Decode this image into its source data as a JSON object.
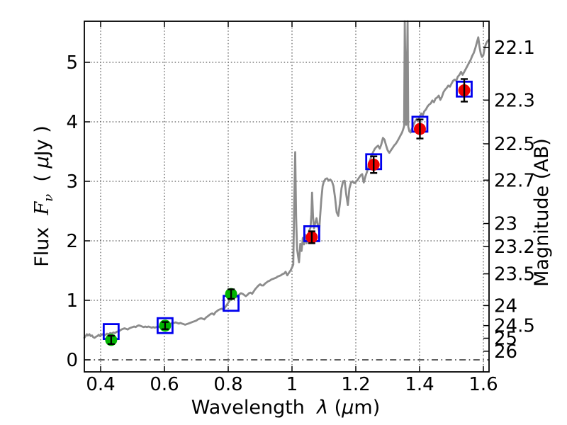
{
  "chart_data": {
    "type": "line+scatter",
    "description": "Galaxy spectral energy distribution: gray model spectrum, green/red observed photometry with error bars, blue open squares for model photometry",
    "xlabel": {
      "text": "Wavelength  ",
      "symbol": "λ",
      "unit_open": " (",
      "mu": "μ",
      "unit_rest": "m)"
    },
    "ylabel_left": {
      "word": "Flux  ",
      "symbol": "F",
      "symbol_sub": "ν",
      "unit_open": "  ( ",
      "mu": "μ",
      "unit_rest": "Jy )"
    },
    "ylabel_right": "Magnitude (AB)",
    "xlim": [
      0.349,
      1.618
    ],
    "ylim": [
      -0.2,
      5.69
    ],
    "x_ticks": {
      "values": [
        0.4,
        0.6,
        0.8,
        1.0,
        1.2,
        1.4,
        1.6
      ],
      "labels": [
        "0.4",
        "0.6",
        "0.8",
        "1",
        "1.2",
        "1.4",
        "1.6"
      ]
    },
    "y_ticks_left": {
      "values": [
        0,
        1,
        2,
        3,
        4,
        5
      ],
      "labels": [
        "0",
        "1",
        "2",
        "3",
        "4",
        "5"
      ]
    },
    "y_ticks_right": {
      "mags": [
        22.1,
        22.3,
        22.5,
        22.7,
        23,
        23.2,
        23.5,
        24,
        24.5,
        25,
        26
      ],
      "labels": [
        "22.1",
        "22.3",
        "22.5",
        "22.7",
        "23",
        "23.2",
        "23.5",
        "24",
        "24.5",
        "25",
        "26"
      ],
      "ab_zeropoint_ujy": 23.9
    },
    "grid": {
      "vertical_at_x_ticks": true,
      "horizontal_at_flux": [
        1,
        2,
        3,
        4,
        5
      ],
      "style": "dotted",
      "zero_flux_line_style": "dash-dot"
    },
    "colors": {
      "observed_optical": "#00b400",
      "observed_infrared": "#ee0000",
      "model_square": "#0000ee",
      "spectrum": "#8c8c8c",
      "grid": "#3a3a3a",
      "frame": "#000000",
      "background": "#ffffff"
    },
    "observed_photometry": [
      {
        "wavelength_um": 0.433,
        "flux_ujy": 0.335,
        "err_ujy": 0.07,
        "color": "observed_optical"
      },
      {
        "wavelength_um": 0.602,
        "flux_ujy": 0.575,
        "err_ujy": 0.06,
        "color": "observed_optical"
      },
      {
        "wavelength_um": 0.809,
        "flux_ujy": 1.105,
        "err_ujy": 0.08,
        "color": "observed_optical"
      },
      {
        "wavelength_um": 1.062,
        "flux_ujy": 2.06,
        "err_ujy": 0.1,
        "color": "observed_infrared"
      },
      {
        "wavelength_um": 1.256,
        "flux_ujy": 3.28,
        "err_ujy": 0.14,
        "color": "observed_infrared"
      },
      {
        "wavelength_um": 1.401,
        "flux_ujy": 3.88,
        "err_ujy": 0.16,
        "color": "observed_infrared"
      },
      {
        "wavelength_um": 1.54,
        "flux_ujy": 4.53,
        "err_ujy": 0.19,
        "color": "observed_infrared"
      }
    ],
    "model_photometry": [
      {
        "wavelength_um": 0.433,
        "flux_ujy": 0.475
      },
      {
        "wavelength_um": 0.602,
        "flux_ujy": 0.575
      },
      {
        "wavelength_um": 0.809,
        "flux_ujy": 0.95
      },
      {
        "wavelength_um": 1.062,
        "flux_ujy": 2.12
      },
      {
        "wavelength_um": 1.256,
        "flux_ujy": 3.33
      },
      {
        "wavelength_um": 1.401,
        "flux_ujy": 3.96
      },
      {
        "wavelength_um": 1.54,
        "flux_ujy": 4.55
      }
    ],
    "spectrum": {
      "color": "#8c8c8c",
      "points": [
        [
          0.349,
          0.37
        ],
        [
          0.353,
          0.4
        ],
        [
          0.357,
          0.43
        ],
        [
          0.36,
          0.41
        ],
        [
          0.365,
          0.43
        ],
        [
          0.369,
          0.4
        ],
        [
          0.373,
          0.41
        ],
        [
          0.377,
          0.38
        ],
        [
          0.381,
          0.37
        ],
        [
          0.386,
          0.39
        ],
        [
          0.39,
          0.4
        ],
        [
          0.394,
          0.42
        ],
        [
          0.398,
          0.4
        ],
        [
          0.402,
          0.42
        ],
        [
          0.406,
          0.43
        ],
        [
          0.41,
          0.41
        ],
        [
          0.415,
          0.42
        ],
        [
          0.42,
          0.44
        ],
        [
          0.425,
          0.43
        ],
        [
          0.43,
          0.45
        ],
        [
          0.435,
          0.44
        ],
        [
          0.44,
          0.46
        ],
        [
          0.445,
          0.45
        ],
        [
          0.45,
          0.47
        ],
        [
          0.455,
          0.48
        ],
        [
          0.46,
          0.49
        ],
        [
          0.465,
          0.51
        ],
        [
          0.47,
          0.52
        ],
        [
          0.475,
          0.53
        ],
        [
          0.48,
          0.52
        ],
        [
          0.485,
          0.51
        ],
        [
          0.49,
          0.53
        ],
        [
          0.495,
          0.54
        ],
        [
          0.5,
          0.55
        ],
        [
          0.505,
          0.56
        ],
        [
          0.51,
          0.55
        ],
        [
          0.515,
          0.57
        ],
        [
          0.52,
          0.58
        ],
        [
          0.525,
          0.57
        ],
        [
          0.53,
          0.56
        ],
        [
          0.535,
          0.55
        ],
        [
          0.54,
          0.56
        ],
        [
          0.545,
          0.55
        ],
        [
          0.55,
          0.56
        ],
        [
          0.555,
          0.55
        ],
        [
          0.56,
          0.54
        ],
        [
          0.565,
          0.55
        ],
        [
          0.57,
          0.54
        ],
        [
          0.575,
          0.55
        ],
        [
          0.58,
          0.56
        ],
        [
          0.585,
          0.55
        ],
        [
          0.59,
          0.56
        ],
        [
          0.595,
          0.57
        ],
        [
          0.6,
          0.57
        ],
        [
          0.605,
          0.58
        ],
        [
          0.61,
          0.59
        ],
        [
          0.615,
          0.6
        ],
        [
          0.62,
          0.61
        ],
        [
          0.625,
          0.62
        ],
        [
          0.63,
          0.62
        ],
        [
          0.635,
          0.63
        ],
        [
          0.64,
          0.62
        ],
        [
          0.645,
          0.61
        ],
        [
          0.65,
          0.62
        ],
        [
          0.655,
          0.61
        ],
        [
          0.66,
          0.6
        ],
        [
          0.665,
          0.59
        ],
        [
          0.67,
          0.6
        ],
        [
          0.675,
          0.61
        ],
        [
          0.68,
          0.62
        ],
        [
          0.685,
          0.63
        ],
        [
          0.69,
          0.64
        ],
        [
          0.695,
          0.65
        ],
        [
          0.7,
          0.66
        ],
        [
          0.705,
          0.68
        ],
        [
          0.71,
          0.69
        ],
        [
          0.715,
          0.7
        ],
        [
          0.72,
          0.69
        ],
        [
          0.725,
          0.68
        ],
        [
          0.73,
          0.71
        ],
        [
          0.735,
          0.73
        ],
        [
          0.74,
          0.75
        ],
        [
          0.745,
          0.77
        ],
        [
          0.75,
          0.78
        ],
        [
          0.755,
          0.76
        ],
        [
          0.76,
          0.8
        ],
        [
          0.765,
          0.82
        ],
        [
          0.77,
          0.84
        ],
        [
          0.775,
          0.85
        ],
        [
          0.78,
          0.86
        ],
        [
          0.785,
          0.84
        ],
        [
          0.79,
          0.88
        ],
        [
          0.795,
          0.92
        ],
        [
          0.8,
          0.96
        ],
        [
          0.805,
          1.0
        ],
        [
          0.81,
          1.03
        ],
        [
          0.815,
          1.06
        ],
        [
          0.82,
          1.08
        ],
        [
          0.825,
          1.05
        ],
        [
          0.83,
          1.07
        ],
        [
          0.835,
          1.1
        ],
        [
          0.84,
          1.12
        ],
        [
          0.845,
          1.11
        ],
        [
          0.85,
          1.09
        ],
        [
          0.855,
          1.07
        ],
        [
          0.86,
          1.09
        ],
        [
          0.865,
          1.12
        ],
        [
          0.87,
          1.13
        ],
        [
          0.875,
          1.11
        ],
        [
          0.88,
          1.15
        ],
        [
          0.885,
          1.19
        ],
        [
          0.89,
          1.22
        ],
        [
          0.895,
          1.25
        ],
        [
          0.9,
          1.27
        ],
        [
          0.905,
          1.25
        ],
        [
          0.91,
          1.25
        ],
        [
          0.915,
          1.28
        ],
        [
          0.92,
          1.3
        ],
        [
          0.925,
          1.32
        ],
        [
          0.93,
          1.33
        ],
        [
          0.935,
          1.35
        ],
        [
          0.94,
          1.36
        ],
        [
          0.945,
          1.37
        ],
        [
          0.95,
          1.38
        ],
        [
          0.955,
          1.4
        ],
        [
          0.96,
          1.41
        ],
        [
          0.965,
          1.42
        ],
        [
          0.97,
          1.44
        ],
        [
          0.975,
          1.45
        ],
        [
          0.98,
          1.48
        ],
        [
          0.985,
          1.42
        ],
        [
          0.99,
          1.46
        ],
        [
          0.995,
          1.5
        ],
        [
          1.0,
          1.55
        ],
        [
          1.004,
          1.6
        ],
        [
          1.007,
          2.6
        ],
        [
          1.01,
          3.49
        ],
        [
          1.013,
          2.4
        ],
        [
          1.016,
          1.86
        ],
        [
          1.019,
          1.75
        ],
        [
          1.022,
          1.64
        ],
        [
          1.026,
          1.95
        ],
        [
          1.03,
          1.83
        ],
        [
          1.034,
          2.05
        ],
        [
          1.038,
          1.94
        ],
        [
          1.042,
          2.1
        ],
        [
          1.046,
          1.96
        ],
        [
          1.05,
          2.05
        ],
        [
          1.054,
          2.17
        ],
        [
          1.058,
          2.22
        ],
        [
          1.061,
          2.45
        ],
        [
          1.063,
          2.81
        ],
        [
          1.066,
          2.4
        ],
        [
          1.069,
          2.21
        ],
        [
          1.073,
          2.3
        ],
        [
          1.077,
          2.38
        ],
        [
          1.081,
          2.26
        ],
        [
          1.085,
          2.16
        ],
        [
          1.088,
          2.4
        ],
        [
          1.092,
          2.7
        ],
        [
          1.096,
          2.92
        ],
        [
          1.1,
          3.0
        ],
        [
          1.105,
          3.04
        ],
        [
          1.11,
          3.05
        ],
        [
          1.115,
          3.01
        ],
        [
          1.12,
          3.03
        ],
        [
          1.125,
          3.0
        ],
        [
          1.13,
          2.92
        ],
        [
          1.135,
          2.72
        ],
        [
          1.14,
          2.48
        ],
        [
          1.145,
          2.42
        ],
        [
          1.15,
          2.62
        ],
        [
          1.155,
          2.88
        ],
        [
          1.16,
          3.0
        ],
        [
          1.165,
          3.01
        ],
        [
          1.17,
          2.78
        ],
        [
          1.175,
          2.6
        ],
        [
          1.18,
          2.88
        ],
        [
          1.185,
          2.98
        ],
        [
          1.19,
          3.0
        ],
        [
          1.195,
          2.97
        ],
        [
          1.2,
          2.99
        ],
        [
          1.205,
          3.02
        ],
        [
          1.21,
          3.06
        ],
        [
          1.215,
          3.1
        ],
        [
          1.22,
          3.12
        ],
        [
          1.225,
          2.98
        ],
        [
          1.23,
          3.08
        ],
        [
          1.235,
          3.16
        ],
        [
          1.24,
          3.26
        ],
        [
          1.245,
          3.36
        ],
        [
          1.25,
          3.44
        ],
        [
          1.255,
          3.5
        ],
        [
          1.26,
          3.55
        ],
        [
          1.265,
          3.58
        ],
        [
          1.27,
          3.6
        ],
        [
          1.275,
          3.55
        ],
        [
          1.28,
          3.62
        ],
        [
          1.285,
          3.73
        ],
        [
          1.29,
          3.7
        ],
        [
          1.295,
          3.6
        ],
        [
          1.3,
          3.52
        ],
        [
          1.305,
          3.48
        ],
        [
          1.31,
          3.52
        ],
        [
          1.315,
          3.56
        ],
        [
          1.32,
          3.6
        ],
        [
          1.325,
          3.63
        ],
        [
          1.33,
          3.67
        ],
        [
          1.335,
          3.72
        ],
        [
          1.34,
          3.77
        ],
        [
          1.345,
          3.82
        ],
        [
          1.349,
          3.88
        ],
        [
          1.3515,
          3.93
        ],
        [
          1.3535,
          5.69
        ],
        [
          1.358,
          3.95
        ],
        [
          1.3625,
          5.69
        ],
        [
          1.3645,
          3.92
        ],
        [
          1.368,
          3.84
        ],
        [
          1.372,
          3.82
        ],
        [
          1.376,
          3.88
        ],
        [
          1.38,
          3.94
        ],
        [
          1.385,
          4.0
        ],
        [
          1.39,
          4.04
        ],
        [
          1.395,
          4.01
        ],
        [
          1.4,
          4.08
        ],
        [
          1.405,
          4.14
        ],
        [
          1.41,
          4.11
        ],
        [
          1.415,
          4.18
        ],
        [
          1.42,
          4.21
        ],
        [
          1.425,
          4.26
        ],
        [
          1.43,
          4.29
        ],
        [
          1.435,
          4.31
        ],
        [
          1.44,
          4.36
        ],
        [
          1.445,
          4.33
        ],
        [
          1.45,
          4.39
        ],
        [
          1.455,
          4.41
        ],
        [
          1.46,
          4.44
        ],
        [
          1.465,
          4.37
        ],
        [
          1.47,
          4.42
        ],
        [
          1.475,
          4.5
        ],
        [
          1.48,
          4.54
        ],
        [
          1.485,
          4.57
        ],
        [
          1.49,
          4.61
        ],
        [
          1.495,
          4.59
        ],
        [
          1.5,
          4.64
        ],
        [
          1.505,
          4.69
        ],
        [
          1.51,
          4.71
        ],
        [
          1.515,
          4.69
        ],
        [
          1.52,
          4.76
        ],
        [
          1.525,
          4.79
        ],
        [
          1.53,
          4.84
        ],
        [
          1.535,
          4.79
        ],
        [
          1.54,
          4.84
        ],
        [
          1.545,
          4.89
        ],
        [
          1.55,
          4.94
        ],
        [
          1.555,
          4.99
        ],
        [
          1.56,
          5.04
        ],
        [
          1.565,
          5.11
        ],
        [
          1.57,
          5.16
        ],
        [
          1.575,
          5.24
        ],
        [
          1.58,
          5.34
        ],
        [
          1.584,
          5.42
        ],
        [
          1.588,
          5.26
        ],
        [
          1.592,
          5.14
        ],
        [
          1.596,
          5.09
        ],
        [
          1.6,
          5.12
        ],
        [
          1.604,
          5.24
        ],
        [
          1.608,
          5.31
        ],
        [
          1.612,
          5.35
        ],
        [
          1.617,
          5.38
        ]
      ]
    }
  }
}
